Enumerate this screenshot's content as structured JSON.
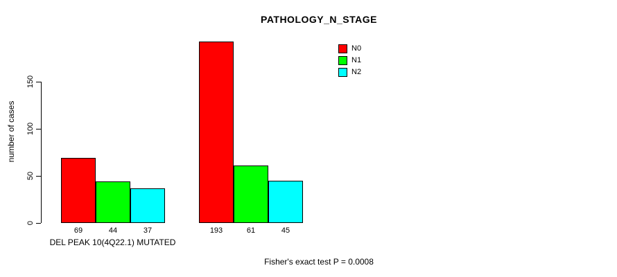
{
  "chart_data": {
    "type": "bar",
    "title": "PATHOLOGY_N_STAGE",
    "xlabel": "",
    "ylabel": "number of cases",
    "ylim": [
      0,
      193
    ],
    "yticks": [
      0,
      50,
      100,
      150
    ],
    "grid": false,
    "legend_position": "top-right",
    "bar_border_color": "#000000",
    "background_color": "#ffffff",
    "series": [
      {
        "name": "N0",
        "color": "#FF0000"
      },
      {
        "name": "N1",
        "color": "#00FF00"
      },
      {
        "name": "N2",
        "color": "#00FFFF"
      }
    ],
    "groups": [
      {
        "label": "DEL PEAK 10(4Q22.1) MUTATED",
        "values": [
          69,
          44,
          37
        ]
      },
      {
        "label": "",
        "values": [
          193,
          61,
          45
        ]
      }
    ],
    "annotation": "Fisher's exact test P = 0.0008"
  }
}
